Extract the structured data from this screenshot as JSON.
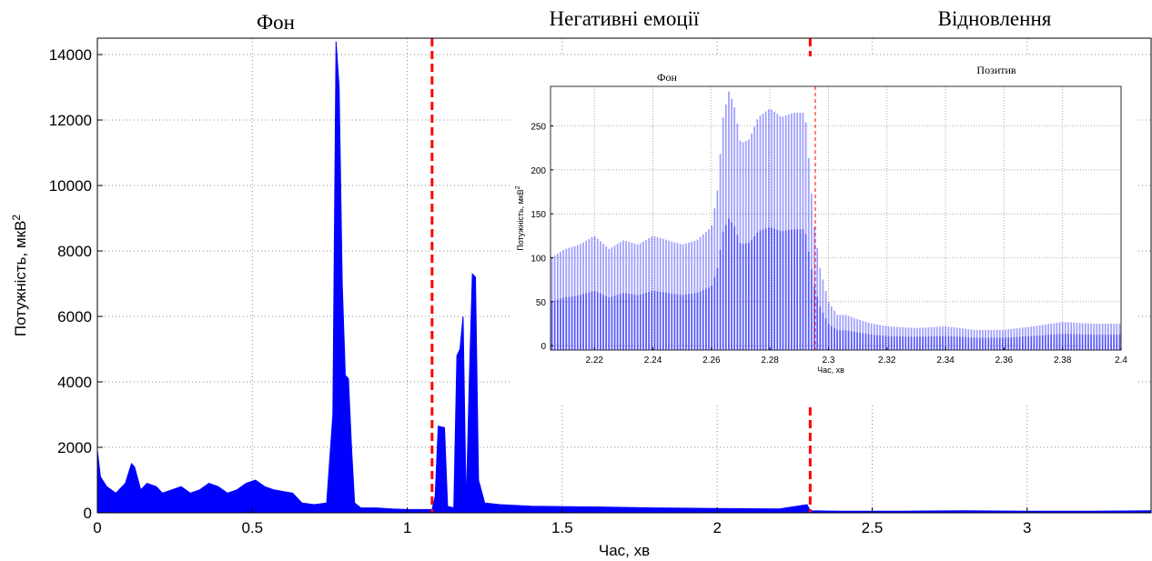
{
  "chart_data": [
    {
      "type": "area",
      "xlabel": "Час, хв",
      "ylabel": "Потужність, мкВ²",
      "xlim": [
        0,
        3.4
      ],
      "ylim": [
        0,
        14500
      ],
      "xticks": [
        "0",
        "0.5",
        "1",
        "1.5",
        "2",
        "2.5",
        "3"
      ],
      "yticks": [
        "0",
        "2000",
        "4000",
        "6000",
        "8000",
        "10000",
        "12000",
        "14000"
      ],
      "grid": true,
      "segments": [
        {
          "label": "Фон"
        },
        {
          "label": "Негативні емоції"
        },
        {
          "label": "Відновлення"
        }
      ],
      "markers": [
        1.08,
        2.3
      ],
      "series": [
        {
          "color": "#0000ff",
          "x": [
            0,
            0.01,
            0.03,
            0.06,
            0.09,
            0.11,
            0.12,
            0.14,
            0.16,
            0.19,
            0.21,
            0.24,
            0.27,
            0.3,
            0.33,
            0.36,
            0.39,
            0.42,
            0.45,
            0.48,
            0.51,
            0.54,
            0.57,
            0.6,
            0.63,
            0.66,
            0.7,
            0.74,
            0.76,
            0.77,
            0.78,
            0.79,
            0.8,
            0.81,
            0.82,
            0.83,
            0.85,
            0.9,
            0.95,
            1.0,
            1.05,
            1.08,
            1.09,
            1.1,
            1.12,
            1.13,
            1.15,
            1.16,
            1.17,
            1.18,
            1.19,
            1.2,
            1.21,
            1.22,
            1.23,
            1.25,
            1.3,
            1.4,
            1.6,
            1.8,
            2.0,
            2.2,
            2.29,
            2.3,
            2.4,
            2.6,
            2.8,
            3.0,
            3.2,
            3.4
          ],
          "values": [
            1900,
            1100,
            800,
            600,
            900,
            1500,
            1400,
            700,
            900,
            800,
            600,
            700,
            800,
            600,
            700,
            900,
            800,
            600,
            700,
            900,
            1000,
            800,
            700,
            650,
            600,
            300,
            250,
            300,
            3000,
            14400,
            13000,
            7000,
            4200,
            4100,
            2000,
            300,
            150,
            150,
            120,
            100,
            100,
            100,
            500,
            2650,
            2600,
            200,
            150,
            4800,
            5000,
            6000,
            200,
            4000,
            7300,
            7200,
            1000,
            300,
            250,
            200,
            180,
            150,
            130,
            120,
            250,
            60,
            50,
            50,
            60,
            50,
            50,
            60
          ]
        }
      ]
    },
    {
      "type": "bar",
      "xlabel": "Час, хв",
      "ylabel": "Потужність, мкВ²",
      "xlim": [
        2.205,
        2.4
      ],
      "ylim": [
        -5,
        295
      ],
      "xticks": [
        "2.22",
        "2.24",
        "2.26",
        "2.28",
        "2.3",
        "2.32",
        "2.34",
        "2.36",
        "2.38",
        "2.4"
      ],
      "yticks": [
        "0",
        "50",
        "100",
        "150",
        "200",
        "250"
      ],
      "grid": true,
      "segments": [
        {
          "label": "Фон"
        },
        {
          "label": "Позитив"
        }
      ],
      "marker": 2.2955,
      "series": [
        {
          "color": "#0000ff",
          "x": [
            2.205,
            2.21,
            2.215,
            2.22,
            2.225,
            2.23,
            2.235,
            2.24,
            2.245,
            2.25,
            2.255,
            2.26,
            2.262,
            2.264,
            2.266,
            2.268,
            2.27,
            2.273,
            2.276,
            2.28,
            2.284,
            2.288,
            2.292,
            2.295,
            2.297,
            2.3,
            2.303,
            2.306,
            2.31,
            2.315,
            2.32,
            2.33,
            2.34,
            2.35,
            2.36,
            2.37,
            2.38,
            2.39,
            2.4
          ],
          "values": [
            100,
            110,
            115,
            125,
            110,
            120,
            115,
            125,
            120,
            115,
            120,
            135,
            175,
            260,
            290,
            270,
            230,
            235,
            260,
            270,
            260,
            265,
            265,
            140,
            90,
            50,
            35,
            35,
            30,
            25,
            22,
            20,
            22,
            18,
            18,
            22,
            27,
            25,
            25
          ]
        }
      ]
    }
  ]
}
